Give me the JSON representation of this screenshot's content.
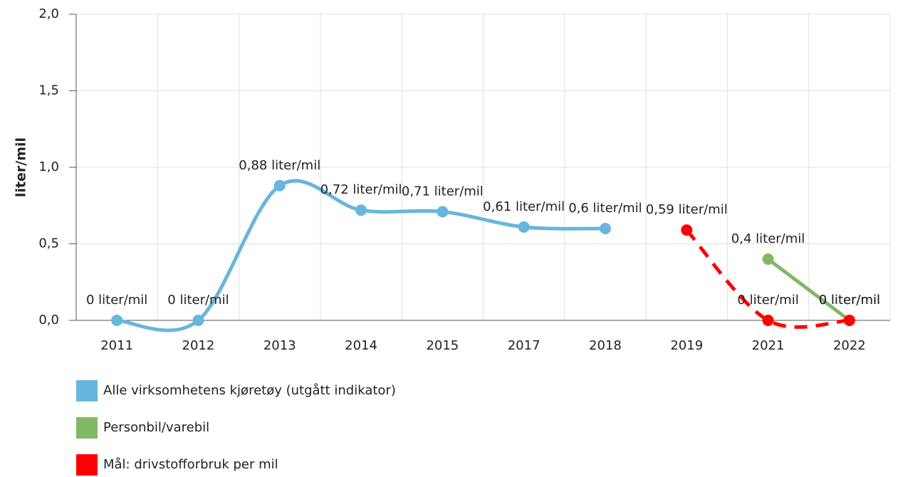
{
  "chart_data": {
    "type": "line",
    "y_label": "liter/mil",
    "categories": [
      "2011",
      "2012",
      "2013",
      "2014",
      "2015",
      "2017",
      "2018",
      "2019",
      "2021",
      "2022"
    ],
    "series": [
      {
        "name": "Alle virksomhetens kjøretøy (utgått indikator)",
        "color": "#67b6dc",
        "dashed": false,
        "values": [
          0,
          0,
          0.88,
          0.72,
          0.71,
          0.61,
          0.6,
          null,
          null,
          null
        ],
        "value_labels": [
          "0 liter/mil",
          "0 liter/mil",
          "0,88 liter/mil",
          "0,72 liter/mil",
          "0,71 liter/mil",
          "0,61 liter/mil",
          "0,6 liter/mil",
          null,
          null,
          null
        ]
      },
      {
        "name": "Personbil/varebil",
        "color": "#82b865",
        "dashed": false,
        "values": [
          null,
          null,
          null,
          null,
          null,
          null,
          null,
          null,
          0.4,
          0
        ],
        "value_labels": [
          null,
          null,
          null,
          null,
          null,
          null,
          null,
          null,
          "0,4 liter/mil",
          "0 liter/mil"
        ]
      },
      {
        "name": "Mål: drivstofforbruk per mil",
        "color": "#ff0000",
        "dashed": true,
        "values": [
          null,
          null,
          null,
          null,
          null,
          null,
          null,
          0.59,
          0,
          0
        ],
        "value_labels": [
          null,
          null,
          null,
          null,
          null,
          null,
          null,
          "0,59 liter/mil",
          "0 liter/mil",
          "0 liter/mil"
        ]
      }
    ],
    "ylim": [
      0,
      2
    ],
    "yticks": [
      {
        "value": 0,
        "label": "0,0"
      },
      {
        "value": 0.5,
        "label": "0,5"
      },
      {
        "value": 1,
        "label": "1,0"
      },
      {
        "value": 1.5,
        "label": "1,5"
      },
      {
        "value": 2,
        "label": "2,0"
      }
    ],
    "grid": true,
    "legend": "bottom"
  }
}
